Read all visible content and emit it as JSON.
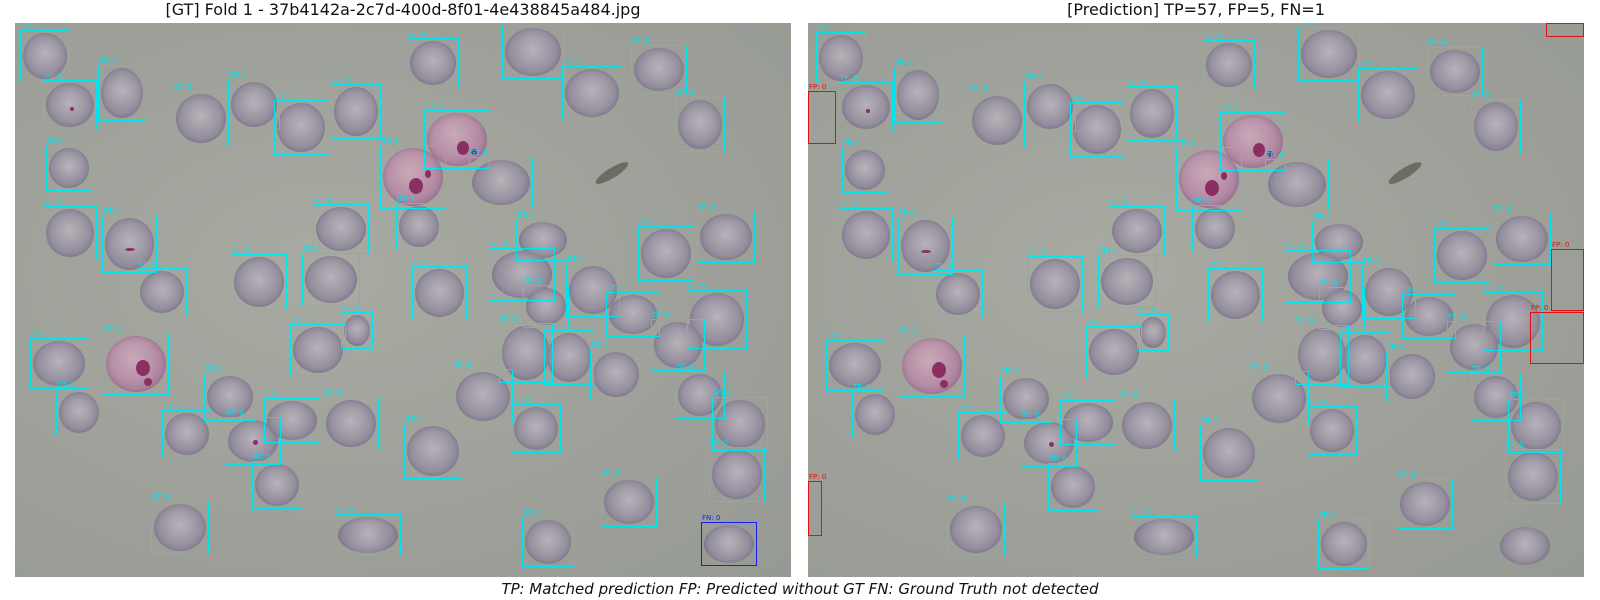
{
  "left_panel": {
    "title": "[GT] Fold 1 - 37b4142a-2c7d-400d-8f01-4e438845a484.jpg"
  },
  "right_panel": {
    "title": "[Prediction] TP=57, FP=5, FN=1"
  },
  "legend_caption": "TP: Matched prediction   FP: Predicted without GT   FN: Ground Truth not detected",
  "colors": {
    "gt_box": "#00e5ee",
    "tp_box": "#00e5ee",
    "fp_box": "#e01010",
    "fn_box": "#1a1aff"
  },
  "label_texts": {
    "gt": "GT: 0",
    "gt_infected": "GT: 1",
    "tp": "TP: 0",
    "tp_infected": "TP: 1",
    "fp": "FP: 0",
    "fn": "FN: 0"
  }
}
